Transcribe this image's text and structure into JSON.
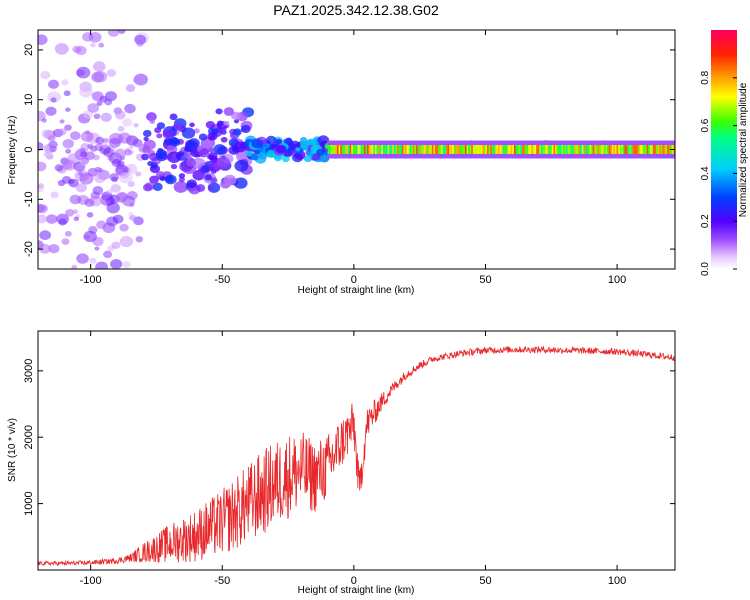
{
  "title": "PAZ1.2025.342.12.38.G02",
  "chart_data": [
    {
      "type": "heatmap",
      "xlabel": "Height of straight line (km)",
      "ylabel": "Frequency (Hz)",
      "xlim": [
        -120,
        122
      ],
      "ylim": [
        -24,
        24
      ],
      "xticks": [
        -100,
        -50,
        0,
        50,
        100
      ],
      "xtick_labels": [
        "-100",
        "-50",
        "0",
        "50",
        "100"
      ],
      "yticks": [
        -20,
        -10,
        0,
        10,
        20
      ],
      "ytick_labels": [
        "-20",
        "-10",
        "0",
        "10",
        "20"
      ],
      "colorbar": {
        "label": "Normalized spectral amplitude",
        "range": [
          0,
          1
        ],
        "ticks": [
          0.0,
          0.2,
          0.4,
          0.6,
          0.8
        ],
        "tick_labels": [
          "0.0",
          "0.2",
          "0.4",
          "0.6",
          "0.8"
        ],
        "colormap": "rainbow (violet to red)"
      },
      "description_regions": [
        {
          "x_range": [
            -120,
            -80
          ],
          "freq_spread": 24,
          "amplitude": 0.15
        },
        {
          "x_range": [
            -80,
            -40
          ],
          "freq_spread": 8,
          "amplitude": 0.25
        },
        {
          "x_range": [
            -40,
            -10
          ],
          "freq_spread": 2,
          "amplitude": 0.4
        },
        {
          "x_range": [
            -10,
            122
          ],
          "freq_spread": 1,
          "amplitude": 0.7
        }
      ]
    },
    {
      "type": "line",
      "xlabel": "Height of straight line (km)",
      "ylabel": "SNR (10 * v/v)",
      "xlim": [
        -120,
        122
      ],
      "ylim": [
        0,
        3600
      ],
      "xticks": [
        -100,
        -50,
        0,
        50,
        100
      ],
      "xtick_labels": [
        "-100",
        "-50",
        "0",
        "50",
        "100"
      ],
      "yticks": [
        1000,
        2000,
        3000
      ],
      "ytick_labels": [
        "1000",
        "2000",
        "3000"
      ],
      "color": "#e8282a",
      "series": [
        {
          "name": "SNR",
          "x": [
            -120,
            -110,
            -100,
            -90,
            -85,
            -80,
            -75,
            -70,
            -65,
            -60,
            -55,
            -50,
            -45,
            -40,
            -35,
            -30,
            -25,
            -20,
            -15,
            -10,
            -5,
            0,
            2,
            5,
            10,
            15,
            20,
            25,
            30,
            40,
            50,
            60,
            70,
            80,
            90,
            100,
            110,
            122
          ],
          "y": [
            100,
            100,
            110,
            140,
            180,
            260,
            330,
            400,
            460,
            520,
            620,
            720,
            850,
            1000,
            1150,
            1300,
            1420,
            1500,
            1400,
            1550,
            1900,
            2200,
            1200,
            2200,
            2500,
            2750,
            2950,
            3080,
            3180,
            3260,
            3310,
            3320,
            3320,
            3310,
            3300,
            3290,
            3250,
            3200
          ],
          "noise": [
            30,
            30,
            35,
            45,
            60,
            150,
            220,
            300,
            350,
            400,
            450,
            500,
            560,
            600,
            650,
            650,
            650,
            600,
            550,
            500,
            400,
            350,
            300,
            250,
            150,
            90,
            70,
            60,
            50,
            50,
            50,
            50,
            50,
            50,
            50,
            50,
            50,
            50
          ]
        }
      ]
    }
  ]
}
